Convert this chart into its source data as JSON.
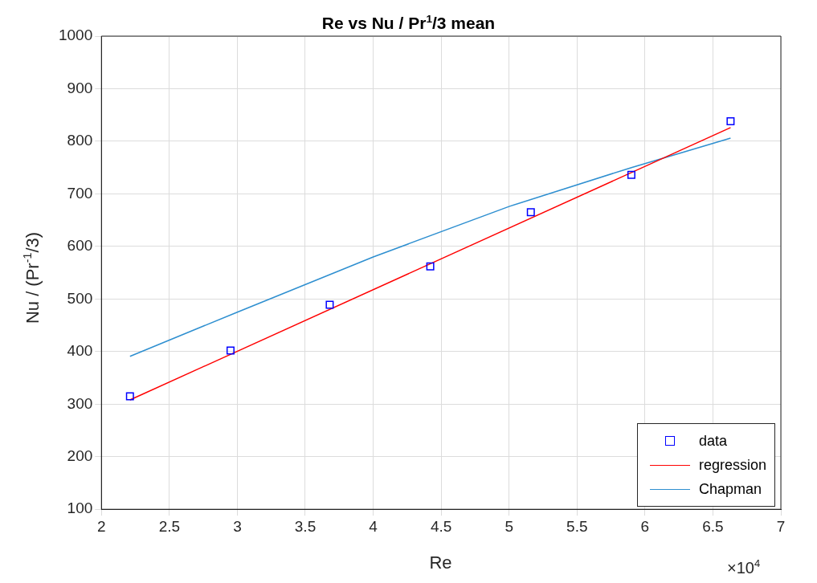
{
  "chart_data": {
    "type": "scatter",
    "title": "Re vs Nu / Pr$^{1}$/3 mean",
    "xlabel": "Re",
    "ylabel": "Nu / (Pr$^{-1}$/3)",
    "annotations": [
      "×10$^{4}$"
    ],
    "xlim": [
      2,
      7
    ],
    "xticks": [
      2,
      2.5,
      3,
      3.5,
      4,
      4.5,
      5,
      5.5,
      6,
      6.5,
      7
    ],
    "ylim": [
      100,
      1000
    ],
    "yticks": [
      100,
      200,
      300,
      400,
      500,
      600,
      700,
      800,
      900,
      1000
    ],
    "grid": true,
    "legend": "bottom right",
    "series": [
      {
        "name": "data",
        "marker": "square",
        "color": "#0000ff",
        "x": [
          2.21,
          2.95,
          3.68,
          4.42,
          5.16,
          5.9,
          6.63
        ],
        "values": [
          315,
          402,
          489,
          562,
          665,
          736,
          838
        ]
      },
      {
        "name": "regression",
        "type": "line",
        "marker": "none",
        "color": "#ff0000",
        "x": [
          2.21,
          6.63
        ],
        "values": [
          308,
          826
        ]
      },
      {
        "name": "Chapman",
        "type": "line",
        "marker": "none",
        "color": "#2e8fd0",
        "x": [
          2.21,
          3,
          4,
          5,
          5.9,
          6.63
        ],
        "values": [
          391,
          475,
          580,
          676,
          750,
          806
        ]
      }
    ]
  }
}
